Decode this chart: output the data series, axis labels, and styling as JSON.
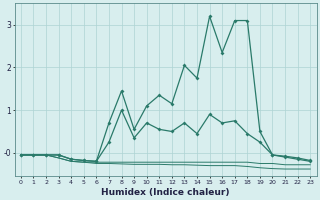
{
  "xlabel": "Humidex (Indice chaleur)",
  "x": [
    0,
    1,
    2,
    3,
    4,
    5,
    6,
    7,
    8,
    9,
    10,
    11,
    12,
    13,
    14,
    15,
    16,
    17,
    18,
    19,
    20,
    21,
    22,
    23
  ],
  "line1": [
    -0.05,
    -0.05,
    -0.05,
    -0.05,
    -0.15,
    -0.18,
    -0.2,
    0.7,
    1.45,
    0.55,
    1.1,
    1.35,
    1.15,
    2.05,
    1.75,
    3.2,
    2.35,
    3.1,
    3.1,
    0.5,
    -0.05,
    -0.1,
    -0.15,
    -0.2
  ],
  "line2": [
    -0.05,
    -0.05,
    -0.05,
    -0.05,
    -0.15,
    -0.18,
    -0.2,
    0.25,
    1.0,
    0.35,
    0.7,
    0.55,
    0.5,
    0.7,
    0.45,
    0.9,
    0.7,
    0.75,
    0.45,
    0.25,
    -0.05,
    -0.08,
    -0.12,
    -0.18
  ],
  "line3": [
    -0.05,
    -0.05,
    -0.05,
    -0.12,
    -0.2,
    -0.22,
    -0.22,
    -0.22,
    -0.22,
    -0.22,
    -0.22,
    -0.22,
    -0.22,
    -0.22,
    -0.22,
    -0.22,
    -0.22,
    -0.22,
    -0.22,
    -0.25,
    -0.25,
    -0.28,
    -0.28,
    -0.28
  ],
  "line4": [
    -0.05,
    -0.05,
    -0.05,
    -0.12,
    -0.2,
    -0.22,
    -0.25,
    -0.25,
    -0.26,
    -0.27,
    -0.27,
    -0.27,
    -0.28,
    -0.28,
    -0.29,
    -0.3,
    -0.3,
    -0.3,
    -0.32,
    -0.35,
    -0.37,
    -0.38,
    -0.38,
    -0.38
  ],
  "line_color": "#2a7a6a",
  "bg_color": "#d8eeee",
  "grid_color": "#aed4d4",
  "ylim": [
    -0.55,
    3.5
  ],
  "xlim": [
    -0.5,
    23.5
  ],
  "yticks": [
    0,
    1,
    2,
    3
  ],
  "ytick_labels": [
    "-0",
    "1",
    "2",
    "3"
  ]
}
